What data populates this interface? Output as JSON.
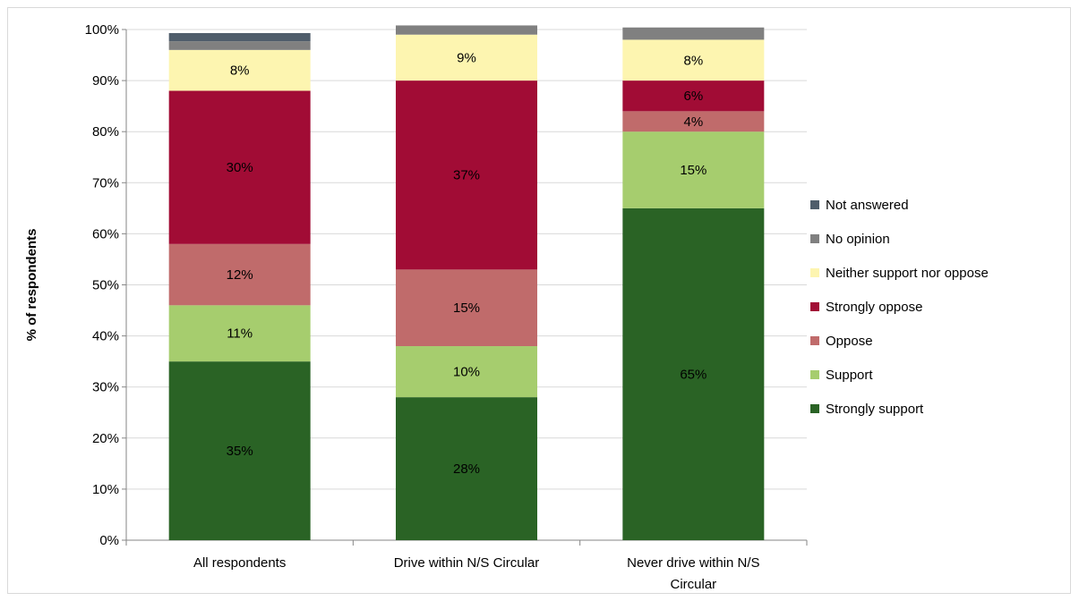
{
  "chart_data": {
    "type": "bar",
    "stacked": true,
    "categories": [
      "All respondents",
      "Drive within N/S Circular",
      "Never drive within N/S Circular"
    ],
    "ylabel": "% of respondents",
    "ylim": [
      0,
      100
    ],
    "yticks": [
      "0%",
      "10%",
      "20%",
      "30%",
      "40%",
      "50%",
      "60%",
      "70%",
      "80%",
      "90%",
      "100%"
    ],
    "grid": true,
    "legend_position": "right",
    "series": [
      {
        "name": "Strongly support",
        "color": "#2a6325",
        "values": [
          35,
          28,
          65
        ],
        "labels": [
          "35%",
          "28%",
          "65%"
        ]
      },
      {
        "name": "Support",
        "color": "#a6cd6e",
        "values": [
          11,
          10,
          15
        ],
        "labels": [
          "11%",
          "10%",
          "15%"
        ]
      },
      {
        "name": "Oppose",
        "color": "#c06b6b",
        "values": [
          12,
          15,
          4
        ],
        "labels": [
          "12%",
          "15%",
          "4%"
        ]
      },
      {
        "name": "Strongly oppose",
        "color": "#a10c35",
        "values": [
          30,
          37,
          6
        ],
        "labels": [
          "30%",
          "37%",
          "6%"
        ]
      },
      {
        "name": "Neither support nor oppose",
        "color": "#fdf5b0",
        "values": [
          8,
          9,
          8
        ],
        "labels": [
          "8%",
          "9%",
          "8%"
        ]
      },
      {
        "name": "No opinion",
        "color": "#808080",
        "values": [
          1.7,
          1.8,
          2.4
        ],
        "labels": [
          "",
          "",
          ""
        ]
      },
      {
        "name": "Not answered",
        "color": "#4f5d6b",
        "values": [
          1.6,
          0,
          0
        ],
        "labels": [
          "",
          "",
          ""
        ]
      }
    ]
  }
}
